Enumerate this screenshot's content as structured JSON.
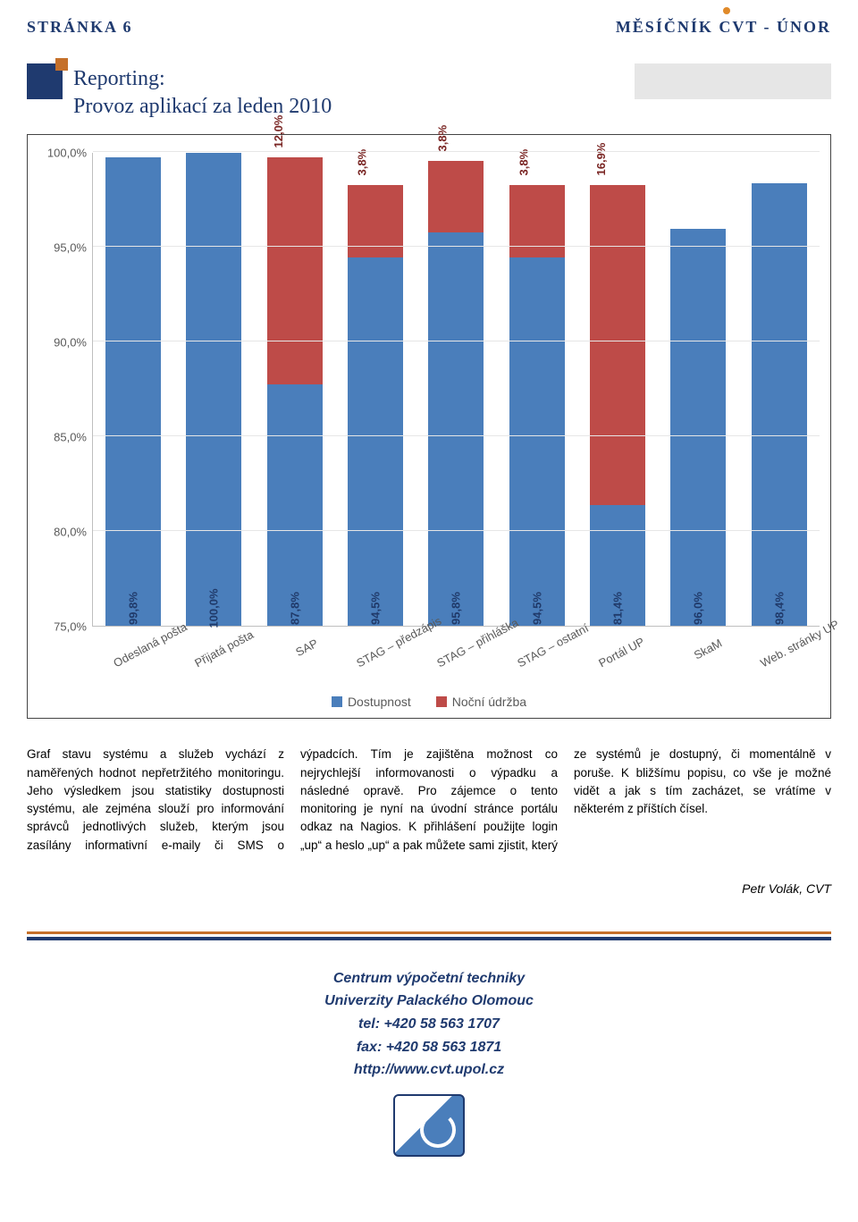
{
  "header": {
    "left": "STRÁNKA 6",
    "right": "MĚSÍČNÍK CVT - ÚNOR"
  },
  "section": {
    "title_line1": "Reporting:",
    "title_line2": "Provoz aplikací za leden 2010"
  },
  "chart": {
    "type": "stacked-bar",
    "ylim": [
      75,
      100
    ],
    "ytick_step": 5,
    "yticks": [
      "75,0%",
      "80,0%",
      "85,0%",
      "90,0%",
      "95,0%",
      "100,0%"
    ],
    "categories": [
      "Odeslaná pošta",
      "Přijatá pošta",
      "SAP",
      "STAG – předzápis",
      "STAG – přihláška",
      "STAG – ostatní",
      "Portál UP",
      "SkaM",
      "Web. stránky UP"
    ],
    "series_blue_label": "Dostupnost",
    "series_red_label": "Noční údržba",
    "blue_color": "#4a7ebb",
    "red_color": "#be4b48",
    "grid_color": "#e6e6e6",
    "axis_color": "#bfbfbf",
    "border_color": "#444444",
    "label_blue_color": "#203a6a",
    "label_red_color": "#7a2624",
    "bars": [
      {
        "blue": 99.8,
        "red": 0.0,
        "blue_label": "99,8%",
        "red_label": ""
      },
      {
        "blue": 100.0,
        "red": 0.0,
        "blue_label": "100,0%",
        "red_label": ""
      },
      {
        "blue": 87.8,
        "red": 12.0,
        "blue_label": "87,8%",
        "red_label": "12,0%"
      },
      {
        "blue": 94.5,
        "red": 3.8,
        "blue_label": "94,5%",
        "red_label": "3,8%"
      },
      {
        "blue": 95.8,
        "red": 3.8,
        "blue_label": "95,8%",
        "red_label": "3,8%"
      },
      {
        "blue": 94.5,
        "red": 3.8,
        "blue_label": "94,5%",
        "red_label": "3,8%"
      },
      {
        "blue": 81.4,
        "red": 16.9,
        "blue_label": "81,4%",
        "red_label": "16,9%"
      },
      {
        "blue": 96.0,
        "red": 0.0,
        "blue_label": "96,0%",
        "red_label": ""
      },
      {
        "blue": 98.4,
        "red": 0.0,
        "blue_label": "98,4%",
        "red_label": ""
      }
    ]
  },
  "body": {
    "paragraph": "Graf stavu systému a služeb vychází z naměřených hodnot nepřetržitého monitoringu. Jeho výsledkem jsou statistiky dostupnosti systému, ale zejména slouží pro informování správců jednotlivých služeb, kterým jsou zasílány informativní e-maily či SMS o výpadcích. Tím je zajištěna možnost co nejrychlejší informovanosti o výpadku a následné opravě. Pro zájemce o tento monitoring je nyní na úvodní stránce portálu odkaz na Nagios. K přihlášení použijte login „up“ a heslo „up“ a pak můžete sami zjistit, který ze systémů je dostupný, či momentálně v poruše. K bližšímu popisu, co vše je možné vidět a jak s tím zacházet, se vrátíme v některém z příštích čísel."
  },
  "signature": "Petr Volák, CVT",
  "footer": {
    "line1": "Centrum výpočetní techniky",
    "line2": "Univerzity Palackého Olomouc",
    "tel": "tel: +420 58 563 1707",
    "fax": "fax: +420 58 563  1871",
    "url": "http://www.cvt.upol.cz"
  }
}
